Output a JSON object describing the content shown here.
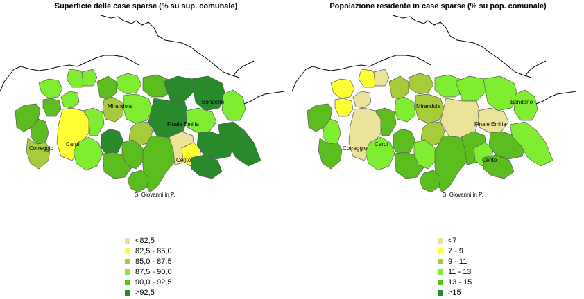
{
  "colors": {
    "c1": "#ece39a",
    "c2": "#ffff33",
    "c3": "#a6cc3c",
    "c4": "#80ee30",
    "c5": "#5cbe1e",
    "c6": "#298a2c",
    "border": "#5a5a5a",
    "river": "#000000"
  },
  "maps": [
    {
      "title": "Superficie delle case sparse (% su sup. comunale)",
      "cities": [
        {
          "name": "Mirandola"
        },
        {
          "name": "Bondeno"
        },
        {
          "name": "Finale Emilia"
        },
        {
          "name": "Carpi"
        },
        {
          "name": "Correggio"
        },
        {
          "name": "Cento"
        },
        {
          "name": "S. Giovanni in P."
        }
      ],
      "legend": [
        {
          "label": "<82,5",
          "color": "#ece39a"
        },
        {
          "label": "82,5 - 85,0",
          "color": "#ffff33"
        },
        {
          "label": "85,0 - 87,5",
          "color": "#a6cc3c"
        },
        {
          "label": "87,5 - 90,0",
          "color": "#80ee30"
        },
        {
          "label": "90,0 - 92,5",
          "color": "#5cbe1e"
        },
        {
          "label": ">92,5",
          "color": "#298a2c"
        }
      ]
    },
    {
      "title": "Popolazione residente in case sparse (% su pop. comunale)",
      "cities": [
        {
          "name": "Mirandola"
        },
        {
          "name": "Bondeno"
        },
        {
          "name": "Finale Emilia"
        },
        {
          "name": "Carpi"
        },
        {
          "name": "Correggio"
        },
        {
          "name": "Cento"
        },
        {
          "name": "S. Giovanni in P."
        }
      ],
      "legend": [
        {
          "label": "<7",
          "color": "#ece39a"
        },
        {
          "label": "7 - 9",
          "color": "#ffff33"
        },
        {
          "label": "9 - 11",
          "color": "#a6cc3c"
        },
        {
          "label": "11 - 13",
          "color": "#80ee30"
        },
        {
          "label": "13 - 15",
          "color": "#5cbe1e"
        },
        {
          "label": ">15",
          "color": "#298a2c"
        }
      ]
    }
  ]
}
